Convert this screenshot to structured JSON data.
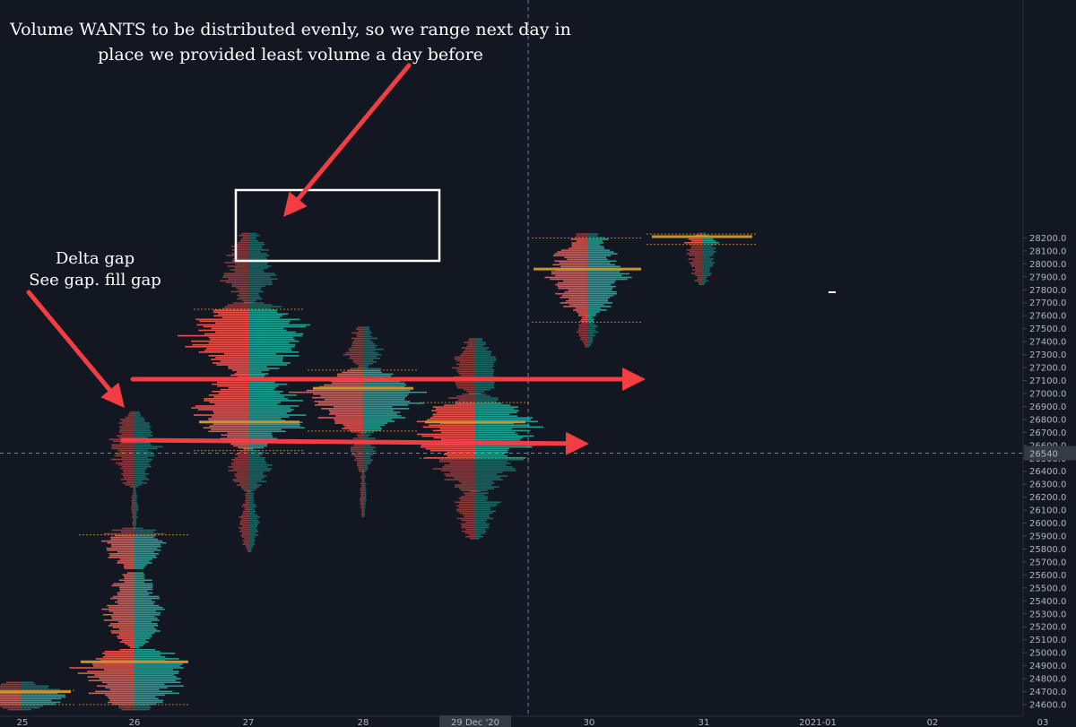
{
  "chart_data": {
    "type": "bar",
    "subtype": "volume-profile",
    "y_axis": {
      "ticks": [
        24600,
        24700,
        24800,
        24900,
        25000,
        25100,
        25200,
        25300,
        25400,
        25500,
        25600,
        25700,
        25800,
        25900,
        26000,
        26100,
        26200,
        26300,
        26400,
        26500,
        26600,
        26700,
        26800,
        26900,
        27000,
        27100,
        27200,
        27300,
        27400,
        27500,
        27600,
        27700,
        27800,
        27900,
        28000,
        28100,
        28200
      ],
      "tick_labels": [
        "24600.0",
        "24700.0",
        "24800.0",
        "24900.0",
        "25000.0",
        "25100.0",
        "25200.0",
        "25300.0",
        "25400.0",
        "25500.0",
        "25600.0",
        "25700.0",
        "25800.0",
        "25900.0",
        "26000.0",
        "26100.0",
        "26200.0",
        "26300.0",
        "26400.0",
        "26500.0",
        "26600.0",
        "26700.0",
        "26800.0",
        "26900.0",
        "27000.0",
        "27100.0",
        "27200.0",
        "27300.0",
        "27400.0",
        "27500.0",
        "27600.0",
        "27700.0",
        "27800.0",
        "27900.0",
        "28000.0",
        "28100.0",
        "28200.0"
      ],
      "range": [
        24555,
        28235
      ],
      "position": "right"
    },
    "x_axis": {
      "ticks": [
        {
          "label": "25",
          "highlight": false,
          "color": "#b2b5be"
        },
        {
          "label": "26",
          "highlight": false,
          "color": "#b2b5be"
        },
        {
          "label": "27",
          "highlight": false,
          "color": "#b2b5be"
        },
        {
          "label": "28",
          "highlight": false,
          "color": "#b2b5be"
        },
        {
          "label": "29 Dec '20",
          "highlight": true,
          "color": "#d1d4dc"
        },
        {
          "label": "30",
          "highlight": false,
          "color": "#b2b5be"
        },
        {
          "label": "31",
          "highlight": false,
          "color": "#b2b5be"
        },
        {
          "label": "2021-01",
          "highlight": false,
          "color": "#2962ff"
        },
        {
          "label": "02",
          "highlight": false,
          "color": "#b2b5be"
        },
        {
          "label": "03",
          "highlight": false,
          "color": "#b2b5be"
        }
      ]
    },
    "crosshair": {
      "price": 26540,
      "price_label": "26540",
      "date": "29 Dec '20"
    },
    "colors": {
      "sell": "#f0564f",
      "buy": "#22a69a",
      "poc": "#c8952c",
      "value_area": "#b4782d",
      "arrow": "#f23e42",
      "box": "#ffffff"
    },
    "profiles": [
      {
        "day": "25",
        "low": 24560,
        "high": 24770,
        "poc": 24700,
        "va_high": 24710,
        "va_low": 24600
      },
      {
        "day": "26",
        "low": 24560,
        "high": 26860,
        "poc": 24930,
        "va_high": 25910,
        "va_low": 24600,
        "gap": [
          25960,
          26280
        ]
      },
      {
        "day": "27",
        "low": 25780,
        "high": 28235,
        "poc": 26780,
        "va_high": 27650,
        "va_low": 26560
      },
      {
        "day": "28",
        "low": 26050,
        "high": 27520,
        "poc": 27040,
        "va_high": 27180,
        "va_low": 26710
      },
      {
        "day": "29",
        "low": 25880,
        "high": 27430,
        "poc": 26780,
        "va_high": 26930,
        "va_low": 26500
      },
      {
        "day": "30",
        "low": 27360,
        "high": 28235,
        "poc": 27960,
        "va_high": 28200,
        "va_low": 27550
      },
      {
        "day": "31",
        "low": 27840,
        "high": 28235,
        "poc": 28210,
        "va_high": 28230,
        "va_low": 28150
      }
    ],
    "annotations": [
      {
        "text": "Volume WANTS to be distributed evenly, so we range next day in"
      },
      {
        "text": "place we provided least volume a day before"
      },
      {
        "text": "Delta gap"
      },
      {
        "text": "See gap. fill gap"
      }
    ]
  }
}
